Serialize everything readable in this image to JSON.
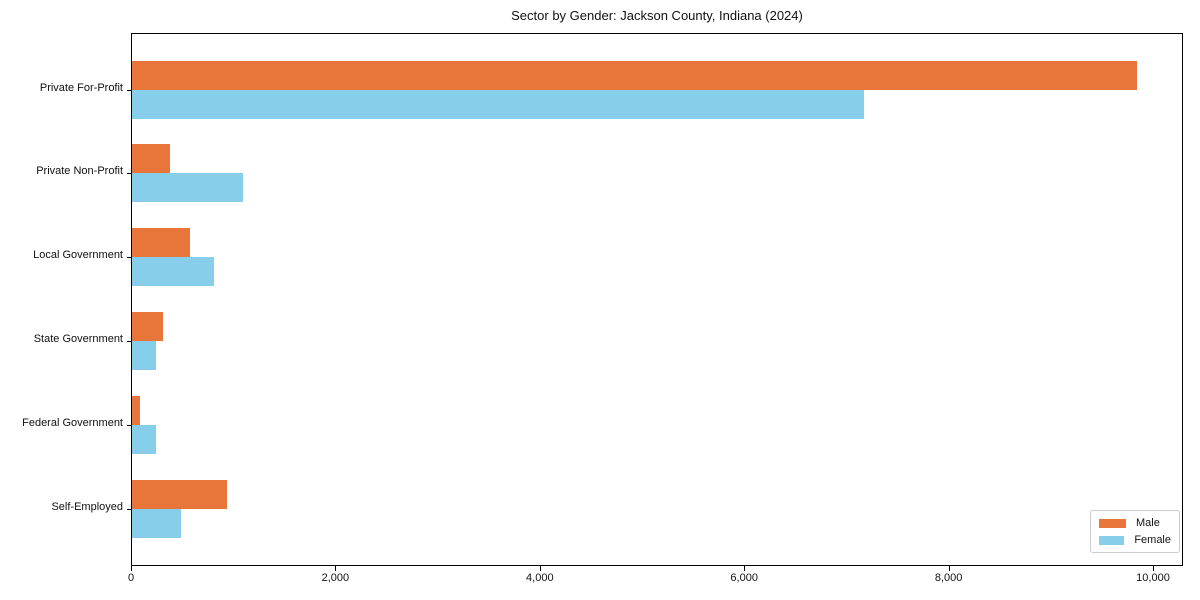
{
  "title": "Sector by Gender: Jackson County, Indiana (2024)",
  "chart_data": {
    "type": "bar",
    "orientation": "horizontal",
    "title": "Sector by Gender: Jackson County, Indiana (2024)",
    "xlabel": "",
    "ylabel": "",
    "categories": [
      "Private For-Profit",
      "Private Non-Profit",
      "Local Government",
      "State Government",
      "Federal Government",
      "Self-Employed"
    ],
    "series": [
      {
        "name": "Male",
        "color": "#E8763B",
        "values": [
          9830,
          375,
          565,
          300,
          80,
          930
        ]
      },
      {
        "name": "Female",
        "color": "#87CEEB",
        "values": [
          7160,
          1090,
          805,
          235,
          235,
          480
        ]
      }
    ],
    "xlim": [
      0,
      10290
    ],
    "xticks": [
      0,
      2000,
      4000,
      6000,
      8000,
      10000
    ],
    "xtick_labels": [
      "0",
      "2,000",
      "4,000",
      "6,000",
      "8,000",
      "10,000"
    ],
    "grid": false,
    "legend": {
      "position": "lower right",
      "entries": [
        "Male",
        "Female"
      ]
    }
  }
}
